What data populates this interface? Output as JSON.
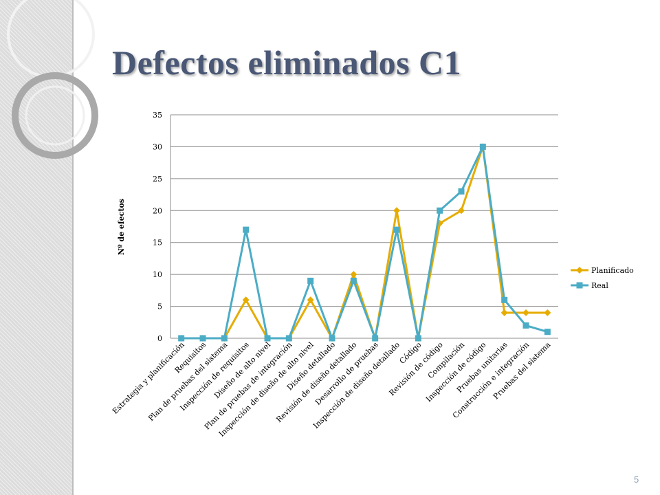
{
  "title": "Defectos eliminados C1",
  "page_number": "5",
  "chart_data": {
    "type": "line",
    "title": "",
    "xlabel": "",
    "ylabel": "Nº de efectos",
    "ylim": [
      0,
      35
    ],
    "yticks": [
      0,
      5,
      10,
      15,
      20,
      25,
      30,
      35
    ],
    "grid": true,
    "legend": "right",
    "categories": [
      "Estrategia y planificación",
      "Requisitos",
      "Plan de pruebas del sistema",
      "Inspección de requisitos",
      "Diseño de alto nivel",
      "Plan de pruebas de integración",
      "Inspección de diseño de alto nivel",
      "Diseño detallado",
      "Revisión de diseño detallado",
      "Desarrollo de pruebas",
      "Inspección de diseño detallado",
      "Código",
      "Revisión de código",
      "Compilación",
      "Inspección de código",
      "Pruebas unitarias",
      "Construcción e integración",
      "Pruebas del sistema"
    ],
    "series": [
      {
        "name": "Planificado",
        "color": "#e6ac00",
        "marker": "diamond",
        "values": [
          0,
          0,
          0,
          6,
          0,
          0,
          6,
          0,
          10,
          0,
          20,
          0,
          18,
          20,
          30,
          4,
          4,
          4
        ]
      },
      {
        "name": "Real",
        "color": "#4bacc6",
        "marker": "square",
        "values": [
          0,
          0,
          0,
          17,
          0,
          0,
          9,
          0,
          9,
          0,
          17,
          0,
          20,
          23,
          30,
          6,
          2,
          1
        ]
      }
    ]
  }
}
